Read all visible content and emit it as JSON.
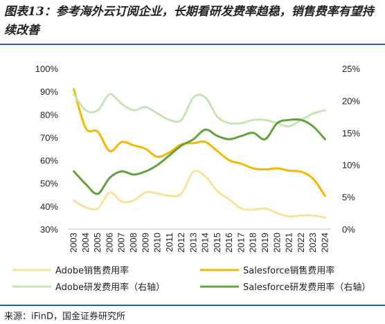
{
  "title": "图表13：参考海外云订阅企业，长期看研发费率趋稳，销售费率有望持续改善",
  "source": "来源：iFinD，国金证券研究所",
  "chart_data": {
    "type": "line",
    "x": [
      "2003",
      "2004",
      "2005",
      "2006",
      "2007",
      "2008",
      "2009",
      "2010",
      "2011",
      "2012",
      "2013",
      "2014",
      "2015",
      "2016",
      "2017",
      "2018",
      "2019",
      "2020",
      "2021",
      "2022",
      "2023",
      "2024"
    ],
    "left_axis": {
      "ylim": [
        30,
        100
      ],
      "ticks": [
        "30%",
        "40%",
        "50%",
        "60%",
        "70%",
        "80%",
        "90%",
        "100%"
      ],
      "tick_values": [
        30,
        40,
        50,
        60,
        70,
        80,
        90,
        100
      ]
    },
    "right_axis": {
      "ylim": [
        0,
        25
      ],
      "ticks": [
        "0%",
        "5%",
        "10%",
        "15%",
        "20%",
        "25%"
      ],
      "tick_values": [
        0,
        5,
        10,
        15,
        20,
        25
      ]
    },
    "grid": false,
    "legend_position": "bottom",
    "series": [
      {
        "name": "Adobe销售费用率",
        "axis": "left",
        "color": "#f7e39b",
        "values": [
          42.5,
          39.5,
          39.0,
          46.0,
          42.0,
          42.5,
          46.0,
          45.5,
          44.5,
          45.5,
          55.0,
          53.0,
          46.5,
          43.0,
          39.0,
          38.5,
          39.0,
          37.0,
          35.5,
          36.0,
          36.0,
          35.0
        ]
      },
      {
        "name": "Salesforce销售费用率",
        "axis": "left",
        "color": "#f5b800",
        "values": [
          91.0,
          74.0,
          72.5,
          64.0,
          68.0,
          66.5,
          65.0,
          61.5,
          63.5,
          67.0,
          67.5,
          68.0,
          64.0,
          60.0,
          58.5,
          56.5,
          56.0,
          56.5,
          55.5,
          55.0,
          52.0,
          44.5
        ]
      },
      {
        "name": "Adobe研发费用率（右轴）",
        "axis": "right",
        "color": "#c8e4b4",
        "values": [
          21.0,
          18.5,
          18.5,
          21.0,
          19.5,
          18.5,
          19.0,
          18.0,
          17.0,
          17.0,
          20.5,
          20.5,
          17.5,
          16.5,
          16.5,
          17.0,
          17.0,
          16.5,
          16.0,
          17.0,
          18.0,
          18.5
        ]
      },
      {
        "name": "Salesforce研发费用率（右轴）",
        "axis": "right",
        "color": "#62a13e",
        "values": [
          9.0,
          7.0,
          5.5,
          8.0,
          9.0,
          8.5,
          9.0,
          10.0,
          11.5,
          13.0,
          14.0,
          15.5,
          14.5,
          14.0,
          14.5,
          15.0,
          14.0,
          16.5,
          17.0,
          17.0,
          16.0,
          14.0
        ]
      }
    ]
  }
}
